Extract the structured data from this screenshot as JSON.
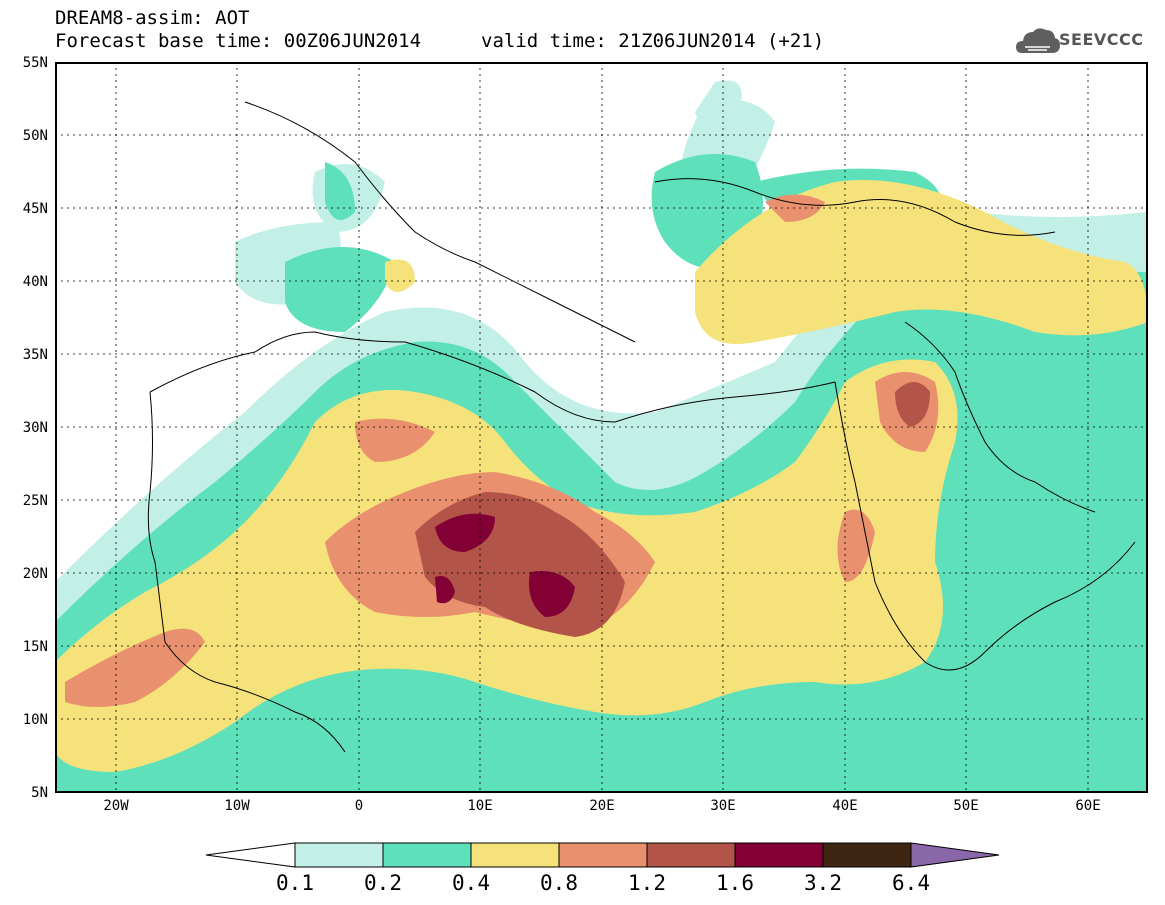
{
  "header": {
    "line1": "DREAM8-assim: AOT",
    "line2": "Forecast base time: 00Z06JUN2014",
    "line3": "valid time: 21Z06JUN2014 (+21)"
  },
  "logo": {
    "text": "SEEVCCC",
    "icon": "cloud-icon"
  },
  "axes": {
    "lat_labels": [
      "55N",
      "50N",
      "45N",
      "40N",
      "35N",
      "30N",
      "25N",
      "20N",
      "15N",
      "10N",
      "5N"
    ],
    "lon_labels": [
      "20W",
      "10W",
      "0",
      "10E",
      "20E",
      "30E",
      "40E",
      "50E",
      "60E"
    ],
    "lon_range": [
      -25,
      65
    ],
    "lat_range": [
      5,
      55
    ]
  },
  "colorbar": {
    "levels": [
      "0.1",
      "0.2",
      "0.4",
      "0.8",
      "1.2",
      "1.6",
      "3.2",
      "6.4"
    ],
    "colors": [
      "#ffffff",
      "#c2f0e7",
      "#5ee0bb",
      "#f6e27a",
      "#e9906e",
      "#b25447",
      "#830035",
      "#3f2613",
      "#8a67a8"
    ]
  }
}
